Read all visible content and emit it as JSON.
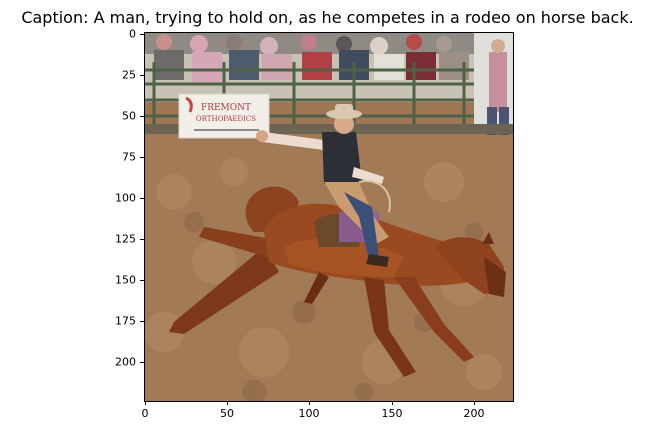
{
  "caption": "Caption: A man, trying to hold on, as he competes in a rodeo on horse back.",
  "image": {
    "description_icon": "rodeo-photo",
    "sign_lines": [
      "FREMONT",
      "ORTHOPAEDICS"
    ],
    "palette": {
      "dirt": "#9a7350",
      "dirt_light": "#b08a66",
      "horse": "#8a3d1c",
      "horse_dark": "#5e2a12",
      "sky": "#dfe3d8",
      "fence": "#556b52",
      "shirt": "#e8d7cc",
      "vest": "#2b2f34",
      "jeans": "#3c4f78",
      "hat": "#d8c8b0",
      "chaps": "#b98f63",
      "pad": "#8e5fa0"
    }
  },
  "axes": {
    "x_ticks": [
      "0",
      "50",
      "100",
      "150",
      "200"
    ],
    "y_ticks": [
      "0",
      "25",
      "50",
      "75",
      "100",
      "125",
      "150",
      "175",
      "200"
    ]
  }
}
